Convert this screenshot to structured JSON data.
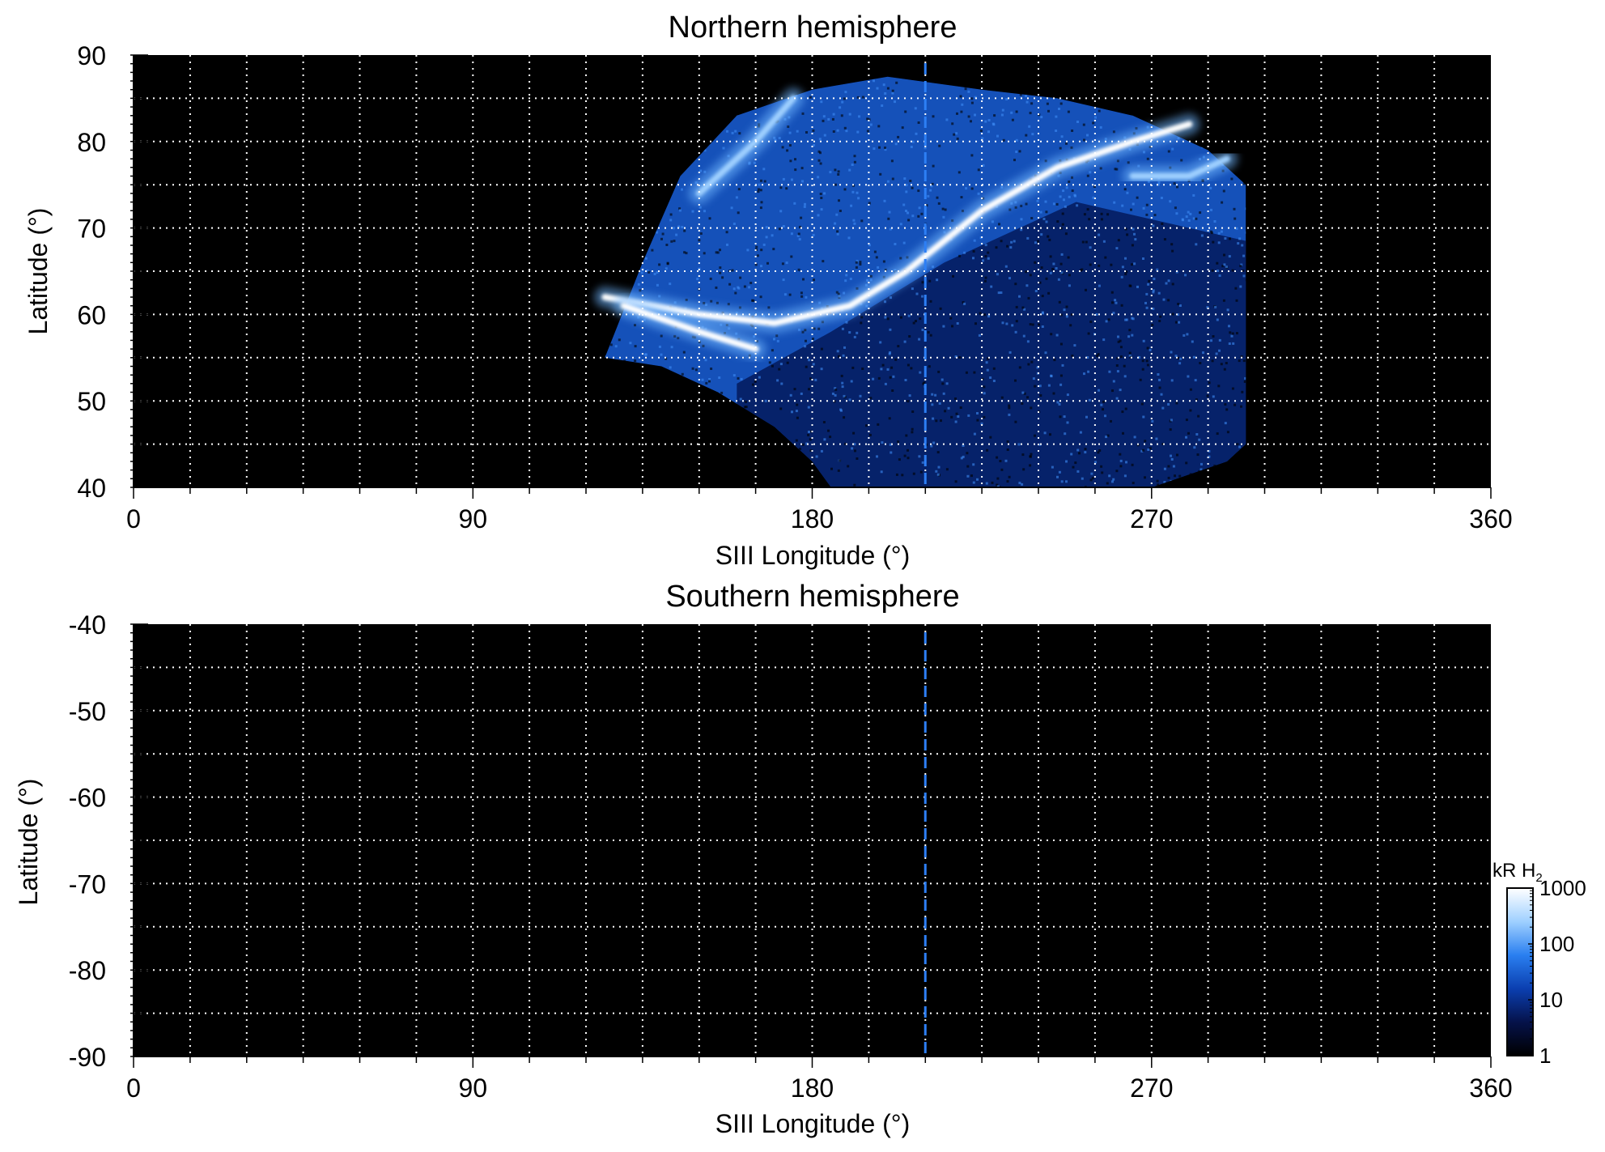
{
  "chart_data": [
    {
      "type": "heatmap",
      "title": "Northern hemisphere",
      "xlabel": "SIII Longitude (°)",
      "ylabel": "Latitude (°)",
      "xlim": [
        0,
        360
      ],
      "ylim": [
        40,
        90
      ],
      "xticks": [
        0,
        90,
        180,
        270,
        360
      ],
      "yticks": [
        40,
        50,
        60,
        70,
        80,
        90
      ],
      "grid": true,
      "marker_longitude": 210,
      "coverage": {
        "top_edge": [
          [
            125,
            55
          ],
          [
            135,
            66
          ],
          [
            145,
            76
          ],
          [
            160,
            83
          ],
          [
            180,
            86
          ],
          [
            200,
            87.5
          ],
          [
            225,
            86
          ],
          [
            245,
            85
          ],
          [
            265,
            83
          ],
          [
            285,
            79
          ],
          [
            295,
            75
          ]
        ],
        "bottom_edge": [
          [
            125,
            55
          ],
          [
            140,
            54
          ],
          [
            155,
            51
          ],
          [
            170,
            47
          ],
          [
            180,
            43
          ],
          [
            185,
            40
          ],
          [
            270,
            40
          ],
          [
            290,
            43
          ],
          [
            295,
            45
          ],
          [
            295,
            75
          ]
        ]
      },
      "emission": [
        {
          "name": "main oval",
          "points": [
            [
              125,
              62
            ],
            [
              150,
              60
            ],
            [
              170,
              59
            ],
            [
              190,
              61
            ],
            [
              205,
              65
            ],
            [
              225,
              72
            ],
            [
              245,
              77
            ],
            [
              265,
              80
            ],
            [
              280,
              82
            ]
          ],
          "level": 1000
        },
        {
          "name": "bright region",
          "points": [
            [
              130,
              61
            ],
            [
              150,
              58
            ],
            [
              165,
              56
            ]
          ],
          "level": 1000
        },
        {
          "name": "high-latitude arc",
          "points": [
            [
              150,
              74
            ],
            [
              165,
              80
            ],
            [
              175,
              85
            ]
          ],
          "level": 300
        },
        {
          "name": "outer arc",
          "points": [
            [
              265,
              76
            ],
            [
              280,
              76
            ],
            [
              290,
              78
            ]
          ],
          "level": 500
        }
      ]
    },
    {
      "type": "heatmap",
      "title": "Southern hemisphere",
      "xlabel": "SIII Longitude (°)",
      "ylabel": "Latitude (°)",
      "xlim": [
        0,
        360
      ],
      "ylim": [
        -90,
        -40
      ],
      "xticks": [
        0,
        90,
        180,
        270,
        360
      ],
      "yticks": [
        -90,
        -80,
        -70,
        -60,
        -50,
        -40
      ],
      "grid": true,
      "marker_longitude": 210,
      "emission": []
    }
  ],
  "colorbar": {
    "label_main": "kR H",
    "label_sub": "2",
    "scale": "log",
    "range": [
      1,
      1000
    ],
    "ticks": [
      "1000",
      "100",
      "10",
      "1"
    ],
    "colors": [
      "#000000",
      "#05124a",
      "#0b3fb0",
      "#2a7ff0",
      "#9fd0ff",
      "#ffffff"
    ]
  }
}
